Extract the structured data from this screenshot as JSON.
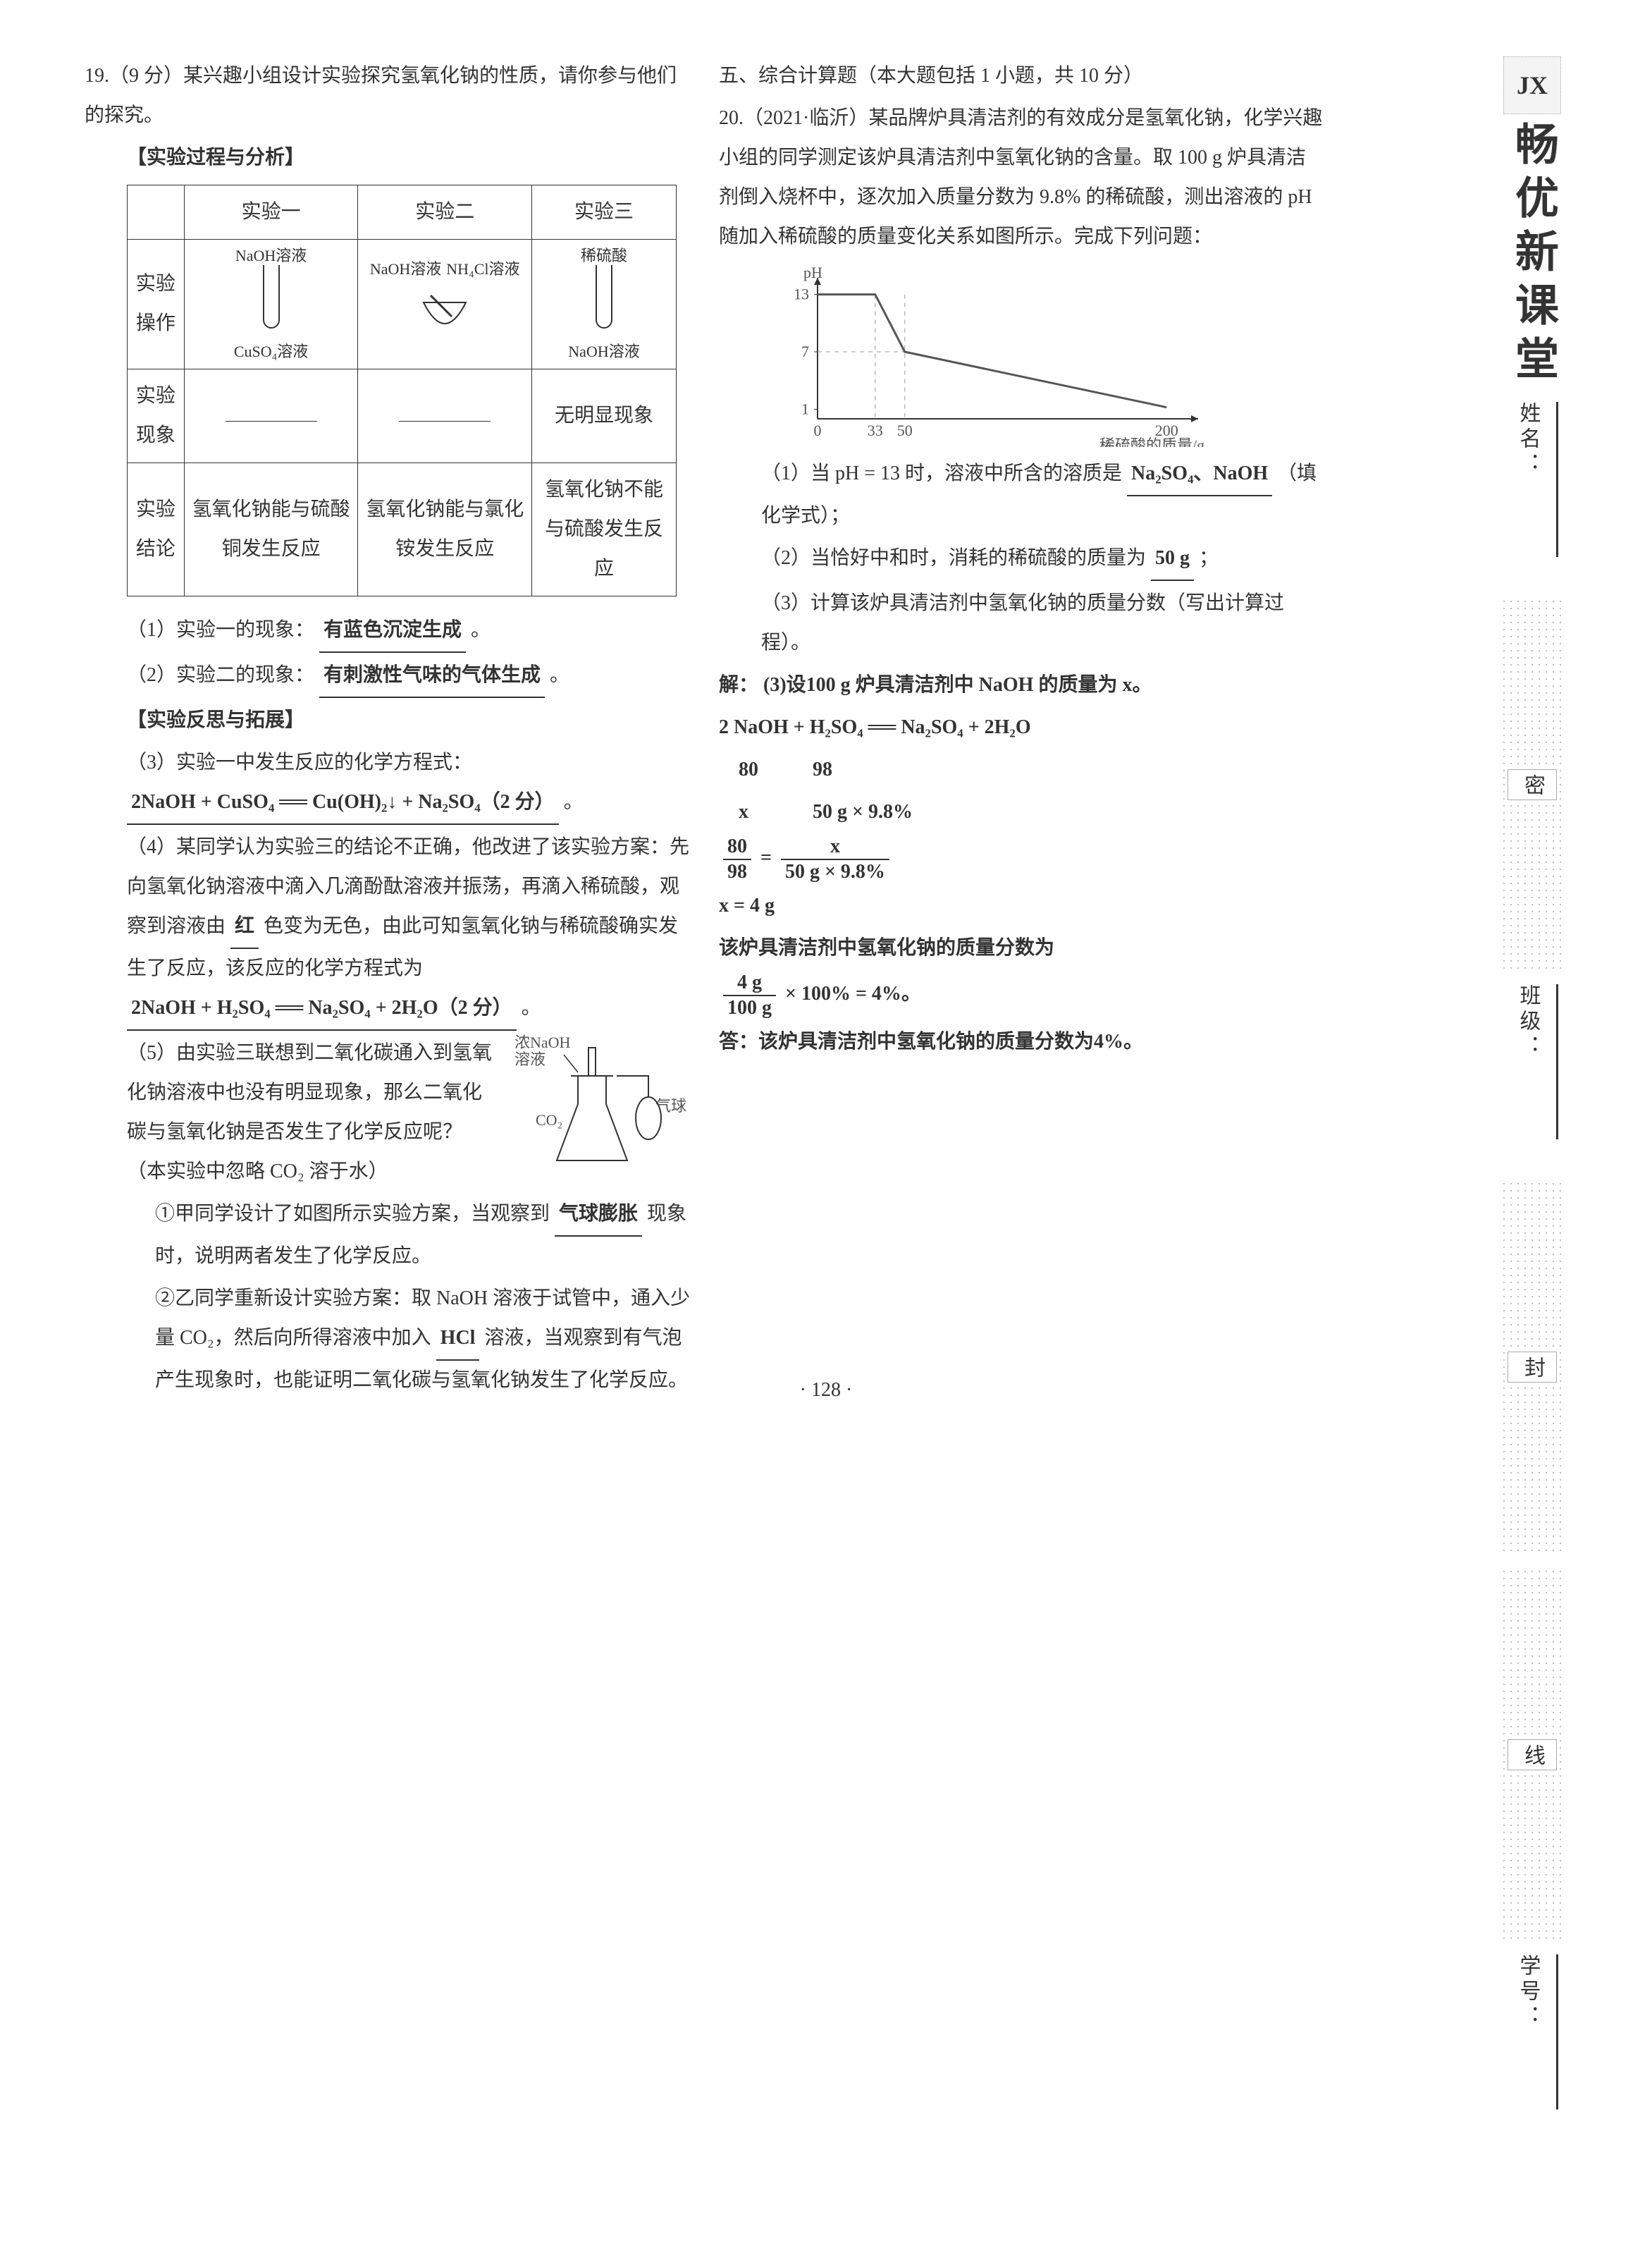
{
  "page_number": "· 128 ·",
  "sidebar": {
    "badge": "JX",
    "title": "畅优新课堂",
    "fields": [
      {
        "label": "姓名："
      },
      {
        "label": "班级："
      },
      {
        "label": "学号："
      }
    ],
    "bands": [
      {
        "char": "密"
      },
      {
        "char": "封"
      },
      {
        "char": "线"
      }
    ]
  },
  "left": {
    "q19_header": "19.（9 分）某兴趣小组设计实验探究氢氧化钠的性质，请你参与他们的探究。",
    "process_title": "【实验过程与分析】",
    "table": {
      "cols": [
        "",
        "实验一",
        "实验二",
        "实验三"
      ],
      "row_op_label": "实验操作",
      "op1_top": "NaOH溶液",
      "op1_bottom": "CuSO₄溶液",
      "op2_left": "NaOH溶液",
      "op2_right": "NH₄Cl溶液",
      "op3_top": "稀硫酸",
      "op3_bottom": "NaOH溶液",
      "row_phenom_label": "实验现象",
      "phenom3": "无明显现象",
      "row_conc_label": "实验结论",
      "conc1": "氢氧化钠能与硫酸铜发生反应",
      "conc2": "氢氧化钠能与氯化铵发生反应",
      "conc3": "氢氧化钠不能与硫酸发生反应"
    },
    "q1_label": "（1）实验一的现象：",
    "q1_ans": "有蓝色沉淀生成",
    "q1_end": "。",
    "q2_label": "（2）实验二的现象：",
    "q2_ans": "有刺激性气味的气体生成",
    "q2_end": "。",
    "reflect_title": "【实验反思与拓展】",
    "q3_label": "（3）实验一中发生反应的化学方程式：",
    "q3_ans": "2NaOH + CuSO₄ ══ Cu(OH)₂↓ + Na₂SO₄（2 分）",
    "q3_end": "。",
    "q4_a": "（4）某同学认为实验三的结论不正确，他改进了该实验方案：先向氢氧化钠溶液中滴入几滴酚酞溶液并振荡，再滴入稀硫酸，观察到溶液由",
    "q4_ans_color": "红",
    "q4_b": "色变为无色，由此可知氢氧化钠与稀硫酸确实发生了反应，该反应的化学方程式为",
    "q4_ans_eq": "2NaOH + H₂SO₄ ══ Na₂SO₄ + 2H₂O（2 分）",
    "q4_end": "。",
    "q5_intro": "（5）由实验三联想到二氧化碳通入到氢氧化钠溶液中也没有明显现象，那么二氧化碳与氢氧化钠是否发生了化学反应呢？（本实验中忽略 CO₂ 溶于水）",
    "q5_diagram": {
      "label_naoh": "浓NaOH溶液",
      "label_co2": "CO₂",
      "label_balloon": "气球"
    },
    "q5_1a": "①甲同学设计了如图所示实验方案，当观察到",
    "q5_1_ans": "气球膨胀",
    "q5_1b": "现象时，说明两者发生了化学反应。",
    "q5_2a": "②乙同学重新设计实验方案：取 NaOH 溶液于试管中，通入少量 CO₂，然后向所得溶液中加入",
    "q5_2_ans": "HCl",
    "q5_2b": "溶液，当观察到有气泡产生现象时，也能证明二氧化碳与氢氧化钠发生了化学反应。"
  },
  "right": {
    "section5_title": "五、综合计算题（本大题包括 1 小题，共 10 分）",
    "q20_header": "20.（2021·临沂）某品牌炉具清洁剂的有效成分是氢氧化钠，化学兴趣小组的同学测定该炉具清洁剂中氢氧化钠的含量。取 100 g 炉具清洁剂倒入烧杯中，逐次加入质量分数为 9.8% 的稀硫酸，测出溶液的 pH 随加入稀硫酸的质量变化关系如图所示。完成下列问题：",
    "chart": {
      "type": "line",
      "y_label": "pH",
      "x_label": "稀硫酸的质量/g",
      "y_max": 13,
      "y_ticks": [
        1,
        7,
        13
      ],
      "x_ticks": [
        0,
        33,
        50,
        200
      ],
      "line_color": "#555555",
      "axis_color": "#333333",
      "grid_color": "#999999",
      "points": [
        {
          "x": 0,
          "y": 13
        },
        {
          "x": 33,
          "y": 13
        },
        {
          "x": 50,
          "y": 7
        },
        {
          "x": 200,
          "y": 1.2
        }
      ],
      "drop_lines_x": [
        33,
        50
      ],
      "drop_line_y": 7
    },
    "q1_a": "（1）当 pH = 13 时，溶液中所含的溶质是",
    "q1_ans": "Na₂SO₄、NaOH",
    "q1_b": "（填化学式）；",
    "q2_a": "（2）当恰好中和时，消耗的稀硫酸的质量为",
    "q2_ans": "50 g",
    "q2_b": "；",
    "q3_text": "（3）计算该炉具清洁剂中氢氧化钠的质量分数（写出计算过程）。",
    "sol_label": "解：",
    "sol_line1": "(3)设100 g 炉具清洁剂中 NaOH 的质量为 x。",
    "sol_eq": "2 NaOH  +  H₂SO₄ ══ Na₂SO₄ + 2H₂O",
    "sol_mass1": "80",
    "sol_mass2": "98",
    "sol_var1": "x",
    "sol_var2": "50 g × 9.8%",
    "sol_frac_l_num": "80",
    "sol_frac_l_den": "98",
    "sol_frac_eq": "=",
    "sol_frac_r_num": "x",
    "sol_frac_r_den": "50 g × 9.8%",
    "sol_x": "x = 4 g",
    "sol_pct_text": "该炉具清洁剂中氢氧化钠的质量分数为",
    "sol_pct_num": "4 g",
    "sol_pct_den": "100 g",
    "sol_pct_tail": " × 100% = 4%。",
    "sol_answer": "答：该炉具清洁剂中氢氧化钠的质量分数为4%。"
  }
}
